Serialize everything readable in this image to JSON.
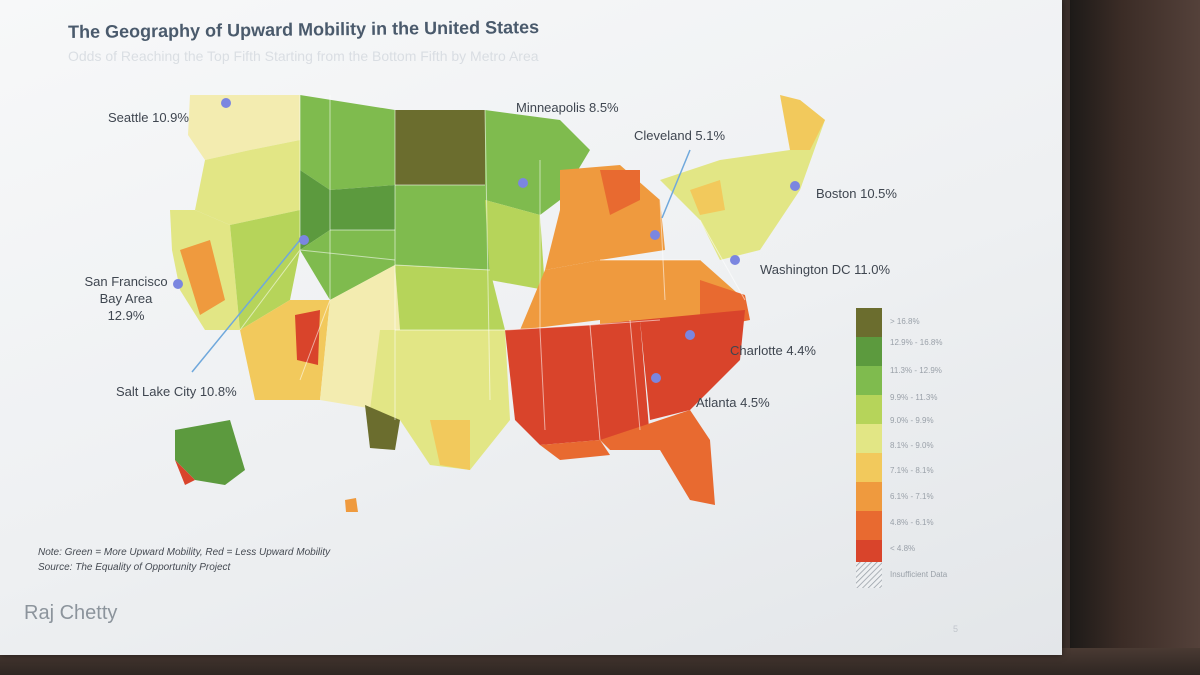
{
  "slide": {
    "title": "The Geography of Upward Mobility in the United States",
    "subtitle": "Odds of Reaching the Top Fifth Starting from the Bottom Fifth by Metro Area",
    "author": "Raj Chetty",
    "page_number": "5"
  },
  "cities": [
    {
      "name": "Seattle",
      "value": "10.9%",
      "label": "Seattle 10.9%"
    },
    {
      "name": "Minneapolis",
      "value": "8.5%",
      "label": "Minneapolis 8.5%"
    },
    {
      "name": "Cleveland",
      "value": "5.1%",
      "label": "Cleveland 5.1%"
    },
    {
      "name": "Boston",
      "value": "10.5%",
      "label": "Boston 10.5%"
    },
    {
      "name": "Washington DC",
      "value": "11.0%",
      "label": "Washington DC 11.0%"
    },
    {
      "name": "San Francisco Bay Area",
      "value": "12.9%",
      "label_lines": [
        "San Francisco",
        "Bay Area",
        "12.9%"
      ]
    },
    {
      "name": "Salt Lake City",
      "value": "10.8%",
      "label": "Salt Lake City 10.8%"
    },
    {
      "name": "Charlotte",
      "value": "4.4%",
      "label": "Charlotte 4.4%"
    },
    {
      "name": "Atlanta",
      "value": "4.5%",
      "label": "Atlanta 4.5%"
    }
  ],
  "legend": {
    "items": [
      {
        "label": "> 16.8%",
        "color": "#6b6d2e"
      },
      {
        "label": "12.9% - 16.8%",
        "color": "#5c9a3e"
      },
      {
        "label": "11.3% - 12.9%",
        "color": "#7fbb4e"
      },
      {
        "label": "9.9% - 11.3%",
        "color": "#b6d45a"
      },
      {
        "label": "9.0% - 9.9%",
        "color": "#e2e685"
      },
      {
        "label": "8.1% - 9.0%",
        "color": "#f3ecb0"
      },
      {
        "label": "7.1% - 8.1%",
        "color": "#f2c95c"
      },
      {
        "label": "6.1% - 7.1%",
        "color": "#ef9a3e"
      },
      {
        "label": "4.8% - 6.1%",
        "color": "#e86a30"
      },
      {
        "label": "< 4.8%",
        "color": "#d9442b"
      }
    ],
    "insufficient_label": "Insufficient Data"
  },
  "notes": {
    "note": "Note: Green = More Upward Mobility, Red = Less Upward Mobility",
    "source": "Source: The Equality of Opportunity Project"
  },
  "colors": {
    "city_marker": "#7b86e0",
    "pointer_line": "#6fa8dc"
  }
}
